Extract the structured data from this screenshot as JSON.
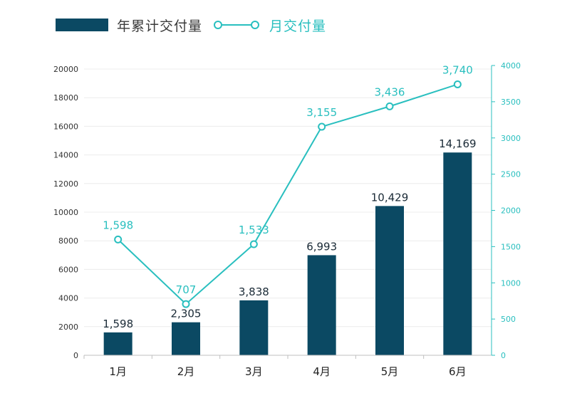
{
  "chart_data": {
    "type": "bar+line",
    "categories": [
      "1月",
      "2月",
      "3月",
      "4月",
      "5月",
      "6月"
    ],
    "series": [
      {
        "name": "年累计交付量",
        "type": "bar",
        "axis": "left",
        "values": [
          1598,
          2305,
          3838,
          6993,
          10429,
          14169
        ],
        "labels": [
          "1,598",
          "2,305",
          "3,838",
          "6,993",
          "10,429",
          "14,169"
        ],
        "color": "#0b4963"
      },
      {
        "name": "月交付量",
        "type": "line",
        "axis": "right",
        "values": [
          1598,
          707,
          1533,
          3155,
          3436,
          3740
        ],
        "labels": [
          "1,598",
          "707",
          "1,533",
          "3,155",
          "3,436",
          "3,740"
        ],
        "color": "#29bfbf"
      }
    ],
    "y_left": {
      "lim": [
        0,
        20000
      ],
      "ticks": [
        "0",
        "2000",
        "4000",
        "6000",
        "8000",
        "10000",
        "12000",
        "14000",
        "16000",
        "18000",
        "20000"
      ]
    },
    "y_right": {
      "lim": [
        0,
        4000
      ],
      "ticks": [
        "0",
        "500",
        "1000",
        "1500",
        "2000",
        "2500",
        "3000",
        "3500",
        "4000"
      ]
    },
    "grid": true,
    "legend_position": "top-left"
  }
}
